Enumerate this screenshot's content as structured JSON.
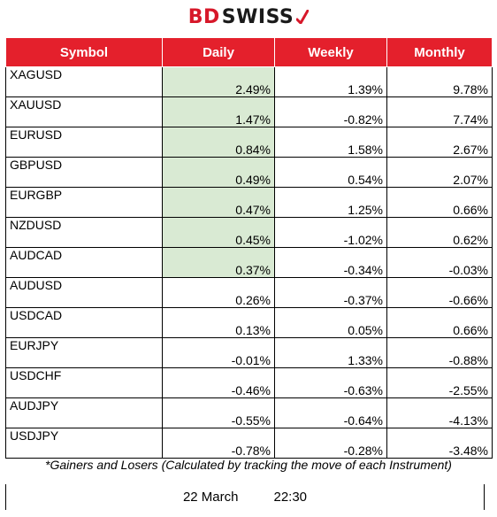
{
  "brand": {
    "part1": "BD",
    "part2": "SWISS",
    "icon": "red-check-mark"
  },
  "table": {
    "headers": [
      "Symbol",
      "Daily",
      "Weekly",
      "Monthly"
    ],
    "rows": [
      {
        "symbol": "XAGUSD",
        "daily": "2.49%",
        "weekly": "1.39%",
        "monthly": "9.78%",
        "highlight": true
      },
      {
        "symbol": "XAUUSD",
        "daily": "1.47%",
        "weekly": "-0.82%",
        "monthly": "7.74%",
        "highlight": true
      },
      {
        "symbol": "EURUSD",
        "daily": "0.84%",
        "weekly": "1.58%",
        "monthly": "2.67%",
        "highlight": true
      },
      {
        "symbol": "GBPUSD",
        "daily": "0.49%",
        "weekly": "0.54%",
        "monthly": "2.07%",
        "highlight": true
      },
      {
        "symbol": "EURGBP",
        "daily": "0.47%",
        "weekly": "1.25%",
        "monthly": "0.66%",
        "highlight": true
      },
      {
        "symbol": "NZDUSD",
        "daily": "0.45%",
        "weekly": "-1.02%",
        "monthly": "0.62%",
        "highlight": true
      },
      {
        "symbol": "AUDCAD",
        "daily": "0.37%",
        "weekly": "-0.34%",
        "monthly": "-0.03%",
        "highlight": true
      },
      {
        "symbol": "AUDUSD",
        "daily": "0.26%",
        "weekly": "-0.37%",
        "monthly": "-0.66%",
        "highlight": false
      },
      {
        "symbol": "USDCAD",
        "daily": "0.13%",
        "weekly": "0.05%",
        "monthly": "0.66%",
        "highlight": false
      },
      {
        "symbol": "EURJPY",
        "daily": "-0.01%",
        "weekly": "1.33%",
        "monthly": "-0.88%",
        "highlight": false
      },
      {
        "symbol": "USDCHF",
        "daily": "-0.46%",
        "weekly": "-0.63%",
        "monthly": "-2.55%",
        "highlight": false
      },
      {
        "symbol": "AUDJPY",
        "daily": "-0.55%",
        "weekly": "-0.64%",
        "monthly": "-4.13%",
        "highlight": false
      },
      {
        "symbol": "USDJPY",
        "daily": "-0.78%",
        "weekly": "-0.28%",
        "monthly": "-3.48%",
        "highlight": false
      }
    ]
  },
  "note": "*Gainers and Losers (Calculated by tracking the move of each Instrument)",
  "footer": {
    "date": "22 March",
    "time": "22:30"
  },
  "colors": {
    "header_bg": "#e4202c",
    "highlight_bg": "#d9ead3",
    "brand_red": "#d7182a"
  }
}
